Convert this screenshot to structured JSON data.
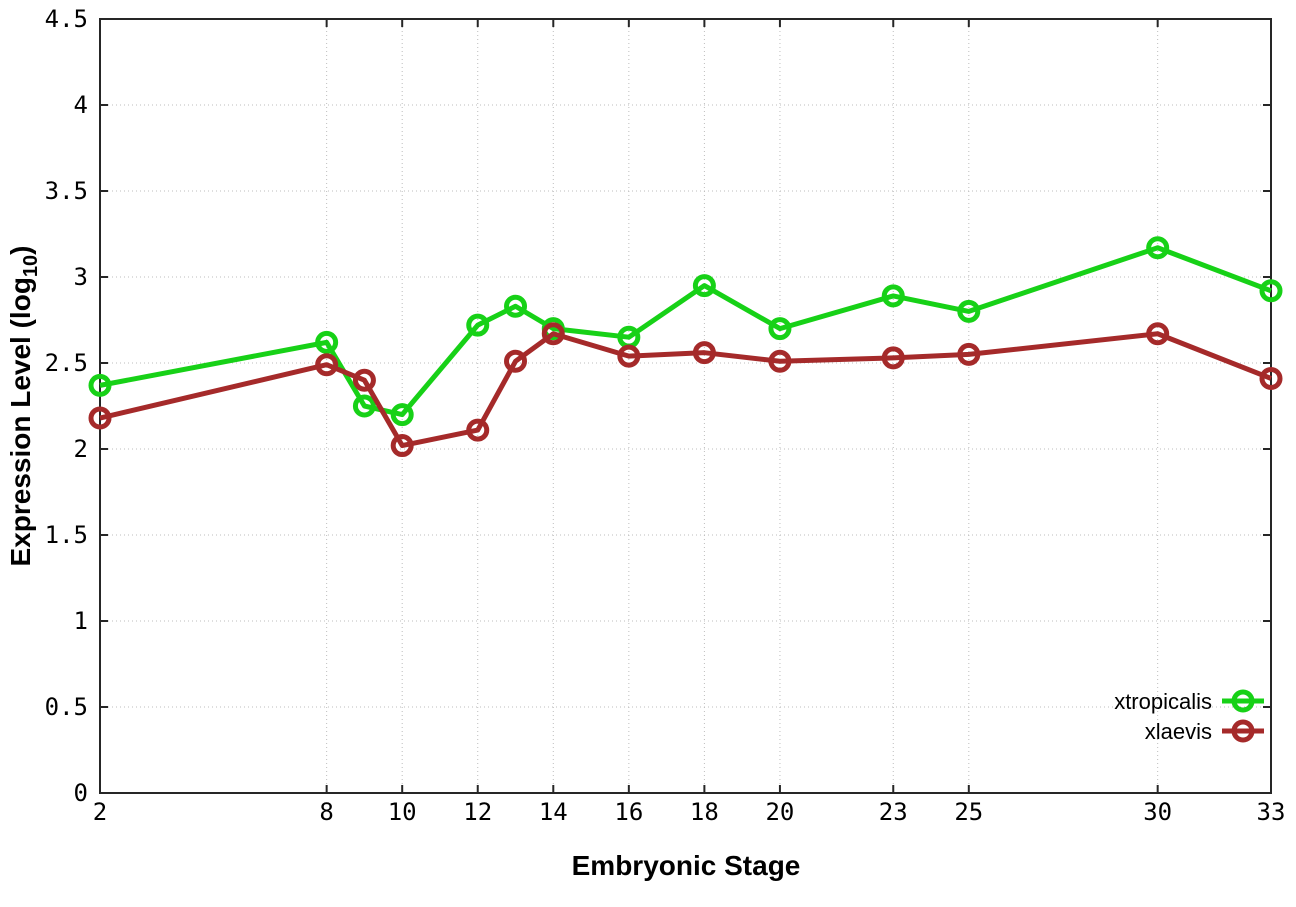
{
  "chart_data": {
    "type": "line",
    "title": "",
    "xlabel": "Embryonic Stage",
    "ylabel": "Expression Level (log10)",
    "ylabel_main": "Expression Level (log",
    "ylabel_sub": "10",
    "ylabel_end": ")",
    "xlim": [
      2,
      33
    ],
    "ylim": [
      0,
      4.5
    ],
    "grid": true,
    "grid_style": "dotted",
    "legend_position": "inside-bottom-right",
    "x": [
      2,
      8,
      9,
      10,
      12,
      13,
      14,
      16,
      18,
      20,
      23,
      25,
      30,
      33
    ],
    "xtick_labels": [
      2,
      8,
      10,
      12,
      14,
      16,
      18,
      20,
      23,
      25,
      30,
      33
    ],
    "ytick_labels": [
      0,
      0.5,
      1,
      1.5,
      2,
      2.5,
      3,
      3.5,
      4,
      4.5
    ],
    "series": [
      {
        "name": "xtropicalis",
        "color": "#17d117",
        "values": [
          2.37,
          2.62,
          2.25,
          2.2,
          2.72,
          2.83,
          2.7,
          2.65,
          2.95,
          2.7,
          2.89,
          2.8,
          3.17,
          2.92
        ]
      },
      {
        "name": "xlaevis",
        "color": "#a52a2a",
        "values": [
          2.18,
          2.49,
          2.4,
          2.02,
          2.11,
          2.51,
          2.67,
          2.54,
          2.56,
          2.51,
          2.53,
          2.55,
          2.67,
          2.41
        ]
      }
    ]
  },
  "style": {
    "background": "#ffffff",
    "axis_color": "#262626",
    "grid_color": "#bdbdbd",
    "text_color": "#000000"
  }
}
